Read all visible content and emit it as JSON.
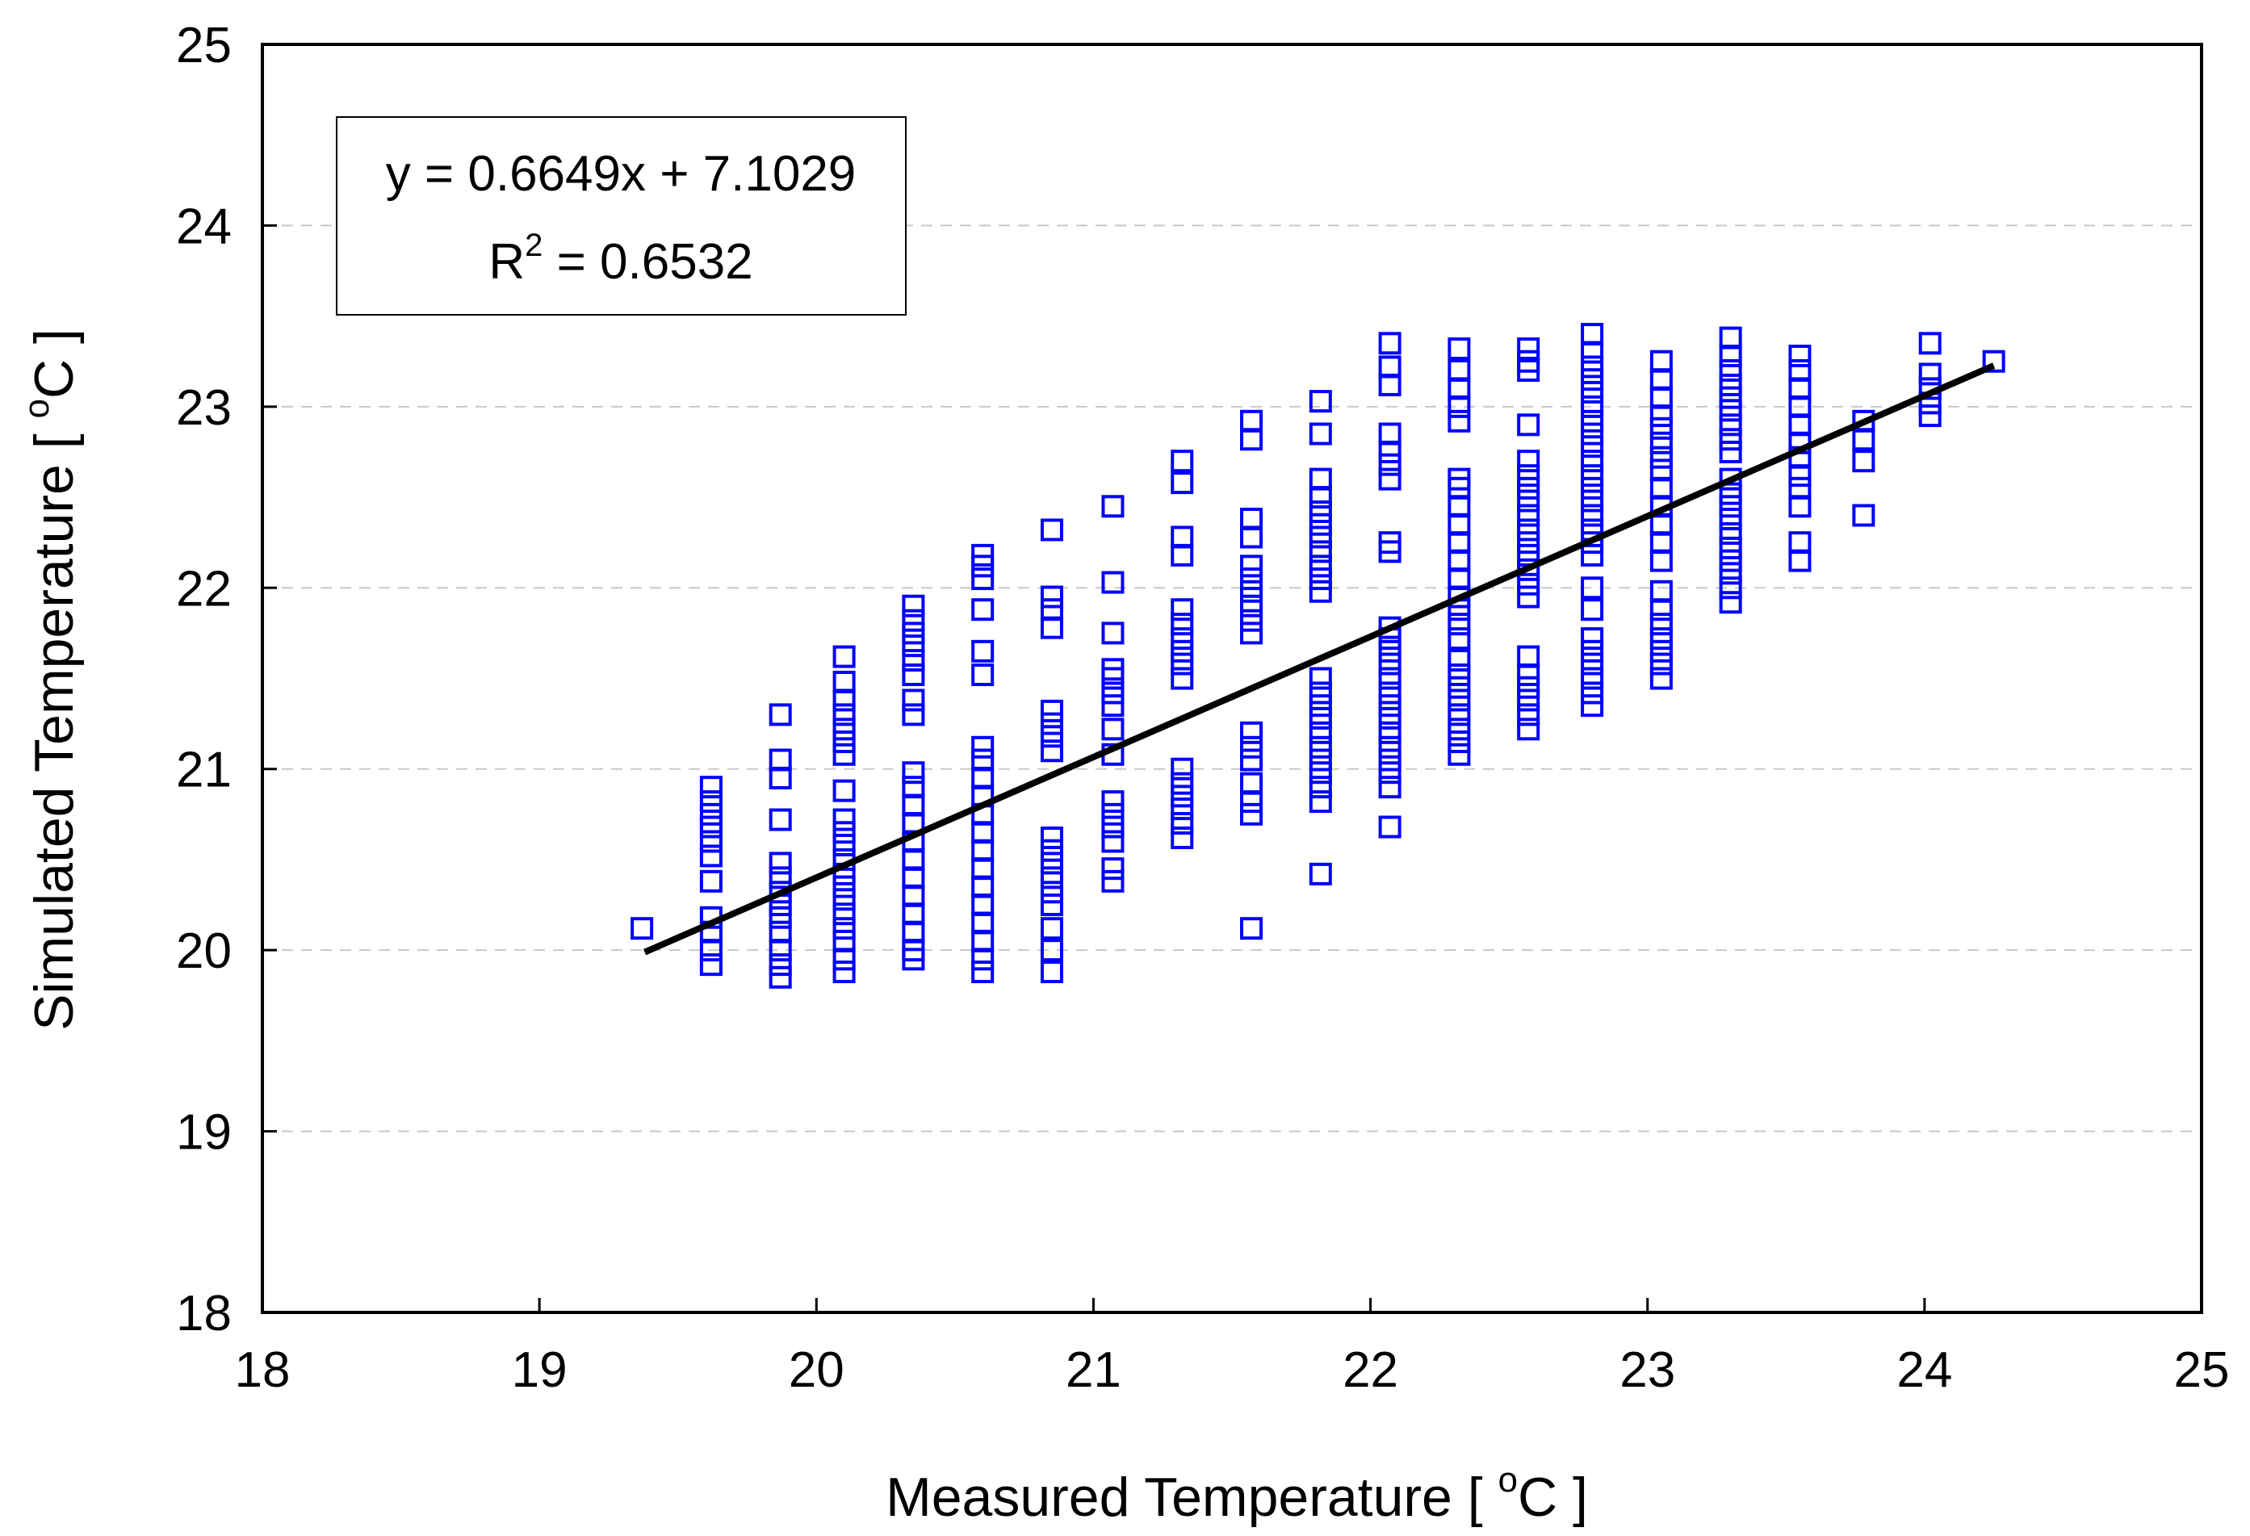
{
  "chart_data": {
    "type": "scatter",
    "title": "",
    "xlabel": {
      "prefix": "Measured Temperature [ ",
      "sup": "o",
      "suffix": "C ]"
    },
    "ylabel": {
      "prefix": "Simulated  Temperature [ ",
      "sup": "o",
      "suffix": "C ]"
    },
    "xlim": [
      18,
      25
    ],
    "ylim": [
      18,
      25
    ],
    "xticks": [
      "18",
      "19",
      "20",
      "21",
      "22",
      "23",
      "24",
      "25"
    ],
    "yticks": [
      "18",
      "19",
      "20",
      "21",
      "22",
      "23",
      "24",
      "25"
    ],
    "grid": "horizontal dashed",
    "marker": "open square",
    "colors": {
      "points": "#0000ff",
      "trendline": "#000000",
      "grid": "#c8c8c8",
      "frame": "#000000"
    },
    "trendline": {
      "slope": 0.6649,
      "intercept": 7.1029,
      "x_range": [
        19.38,
        24.25
      ],
      "equation": "y = 0.6649x + 7.1029",
      "r2_prefix": "R",
      "r2_sup": "2",
      "r2_value": " = 0.6532"
    },
    "columns": [
      {
        "x": 19.37,
        "y": [
          20.12
        ]
      },
      {
        "x": 19.62,
        "y": [
          19.92,
          20.0,
          20.1,
          20.18,
          20.38,
          20.52,
          20.6,
          20.68,
          20.75,
          20.82,
          20.9
        ]
      },
      {
        "x": 19.87,
        "y": [
          19.85,
          19.92,
          20.0,
          20.1,
          20.18,
          20.25,
          20.32,
          20.4,
          20.48,
          20.72,
          20.95,
          21.05,
          21.3
        ]
      },
      {
        "x": 20.1,
        "y": [
          19.88,
          19.95,
          20.05,
          20.12,
          20.2,
          20.28,
          20.35,
          20.42,
          20.5,
          20.58,
          20.65,
          20.72,
          20.88,
          21.08,
          21.15,
          21.22,
          21.3,
          21.38,
          21.48,
          21.62
        ]
      },
      {
        "x": 20.35,
        "y": [
          19.95,
          20.0,
          20.1,
          20.2,
          20.3,
          20.4,
          20.5,
          20.6,
          20.7,
          20.8,
          20.9,
          20.98,
          21.3,
          21.38,
          21.52,
          21.6,
          21.68,
          21.75,
          21.82,
          21.9
        ]
      },
      {
        "x": 20.6,
        "y": [
          19.88,
          19.95,
          20.05,
          20.15,
          20.25,
          20.35,
          20.45,
          20.55,
          20.65,
          20.75,
          20.85,
          20.95,
          21.05,
          21.12,
          21.52,
          21.65,
          21.88,
          22.05,
          22.12,
          22.18
        ]
      },
      {
        "x": 20.85,
        "y": [
          19.88,
          20.0,
          20.12,
          20.25,
          20.32,
          20.4,
          20.48,
          20.55,
          20.62,
          21.1,
          21.18,
          21.25,
          21.32,
          21.78,
          21.88,
          21.95,
          22.32
        ]
      },
      {
        "x": 21.07,
        "y": [
          20.38,
          20.45,
          20.6,
          20.68,
          20.75,
          20.82,
          21.08,
          21.22,
          21.35,
          21.42,
          21.5,
          21.55,
          21.75,
          22.03,
          22.45
        ]
      },
      {
        "x": 21.32,
        "y": [
          20.62,
          20.7,
          20.78,
          20.85,
          20.92,
          21.0,
          21.5,
          21.58,
          21.65,
          21.72,
          21.8,
          21.88,
          22.18,
          22.28,
          22.58,
          22.7
        ]
      },
      {
        "x": 21.57,
        "y": [
          20.12,
          20.75,
          20.82,
          20.92,
          21.05,
          21.12,
          21.2,
          21.75,
          21.82,
          21.9,
          21.98,
          22.05,
          22.12,
          22.28,
          22.38,
          22.82,
          22.92
        ]
      },
      {
        "x": 21.82,
        "y": [
          20.42,
          20.82,
          20.9,
          20.98,
          21.05,
          21.12,
          21.2,
          21.28,
          21.35,
          21.42,
          21.5,
          21.98,
          22.05,
          22.12,
          22.2,
          22.28,
          22.35,
          22.42,
          22.5,
          22.6,
          22.85,
          23.03
        ]
      },
      {
        "x": 22.07,
        "y": [
          20.68,
          20.9,
          20.98,
          21.05,
          21.12,
          21.2,
          21.28,
          21.35,
          21.42,
          21.5,
          21.58,
          21.65,
          21.72,
          21.78,
          22.2,
          22.25,
          22.6,
          22.68,
          22.75,
          22.85,
          23.12,
          23.22,
          23.35
        ]
      },
      {
        "x": 22.32,
        "y": [
          21.08,
          21.15,
          21.22,
          21.3,
          21.38,
          21.45,
          21.52,
          21.6,
          21.72,
          21.8,
          21.88,
          21.95,
          22.05,
          22.15,
          22.25,
          22.35,
          22.45,
          22.55,
          22.6,
          22.92,
          23.0,
          23.1,
          23.2,
          23.32
        ]
      },
      {
        "x": 22.57,
        "y": [
          21.22,
          21.3,
          21.38,
          21.45,
          21.52,
          21.62,
          21.95,
          22.02,
          22.1,
          22.18,
          22.25,
          22.32,
          22.4,
          22.48,
          22.55,
          22.62,
          22.7,
          22.9,
          23.2,
          23.25,
          23.32
        ]
      },
      {
        "x": 22.8,
        "y": [
          21.35,
          21.42,
          21.5,
          21.58,
          21.65,
          21.72,
          21.88,
          22.0,
          22.18,
          22.25,
          22.32,
          22.4,
          22.48,
          22.55,
          22.62,
          22.7,
          22.78,
          22.85,
          22.92,
          23.0,
          23.08,
          23.15,
          23.22,
          23.3,
          23.4
        ]
      },
      {
        "x": 23.05,
        "y": [
          21.5,
          21.58,
          21.65,
          21.72,
          21.8,
          21.88,
          21.98,
          22.15,
          22.25,
          22.35,
          22.45,
          22.55,
          22.65,
          22.72,
          22.8,
          22.88,
          22.95,
          23.05,
          23.15,
          23.25
        ]
      },
      {
        "x": 23.3,
        "y": [
          21.92,
          22.0,
          22.08,
          22.15,
          22.22,
          22.3,
          22.38,
          22.45,
          22.52,
          22.6,
          22.75,
          22.82,
          22.9,
          22.98,
          23.05,
          23.12,
          23.2,
          23.28,
          23.38
        ]
      },
      {
        "x": 23.55,
        "y": [
          22.15,
          22.25,
          22.45,
          22.55,
          22.62,
          22.72,
          22.8,
          22.9,
          23.0,
          23.1,
          23.2,
          23.28
        ]
      },
      {
        "x": 23.78,
        "y": [
          22.4,
          22.7,
          22.82,
          22.92
        ]
      },
      {
        "x": 24.02,
        "y": [
          22.95,
          23.02,
          23.1,
          23.18,
          23.35
        ]
      },
      {
        "x": 24.25,
        "y": [
          23.25
        ]
      }
    ]
  }
}
